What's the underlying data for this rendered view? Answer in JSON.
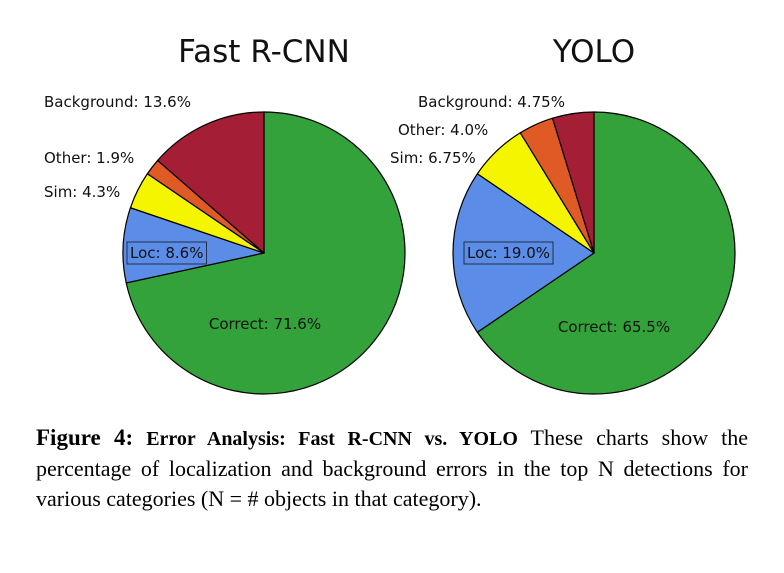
{
  "chart_data": [
    {
      "type": "pie",
      "title": "Fast R-CNN",
      "slices": [
        {
          "label": "Correct",
          "value": 71.6,
          "text": "Correct: 71.6%",
          "color": "#34a23a"
        },
        {
          "label": "Loc",
          "value": 8.6,
          "text": "Loc: 8.6%",
          "color": "#5b8de8"
        },
        {
          "label": "Sim",
          "value": 4.3,
          "text": "Sim: 4.3%",
          "color": "#f5f500"
        },
        {
          "label": "Other",
          "value": 1.9,
          "text": "Other: 1.9%",
          "color": "#df5a25"
        },
        {
          "label": "Background",
          "value": 13.6,
          "text": "Background: 13.6%",
          "color": "#a41f35"
        }
      ]
    },
    {
      "type": "pie",
      "title": "YOLO",
      "slices": [
        {
          "label": "Correct",
          "value": 65.5,
          "text": "Correct: 65.5%",
          "color": "#34a23a"
        },
        {
          "label": "Loc",
          "value": 19.0,
          "text": "Loc: 19.0%",
          "color": "#5b8de8"
        },
        {
          "label": "Sim",
          "value": 6.75,
          "text": "Sim: 6.75%",
          "color": "#f5f500"
        },
        {
          "label": "Other",
          "value": 4.0,
          "text": "Other: 4.0%",
          "color": "#df5a25"
        },
        {
          "label": "Background",
          "value": 4.75,
          "text": "Background: 4.75%",
          "color": "#a41f35"
        }
      ]
    }
  ],
  "caption": {
    "figure_number": "Figure 4:",
    "title": "Error Analysis: Fast R-CNN vs. YOLO",
    "text": "These charts show the percentage of localization and background errors in the top N detections for various categories (N = # objects in that category)."
  }
}
